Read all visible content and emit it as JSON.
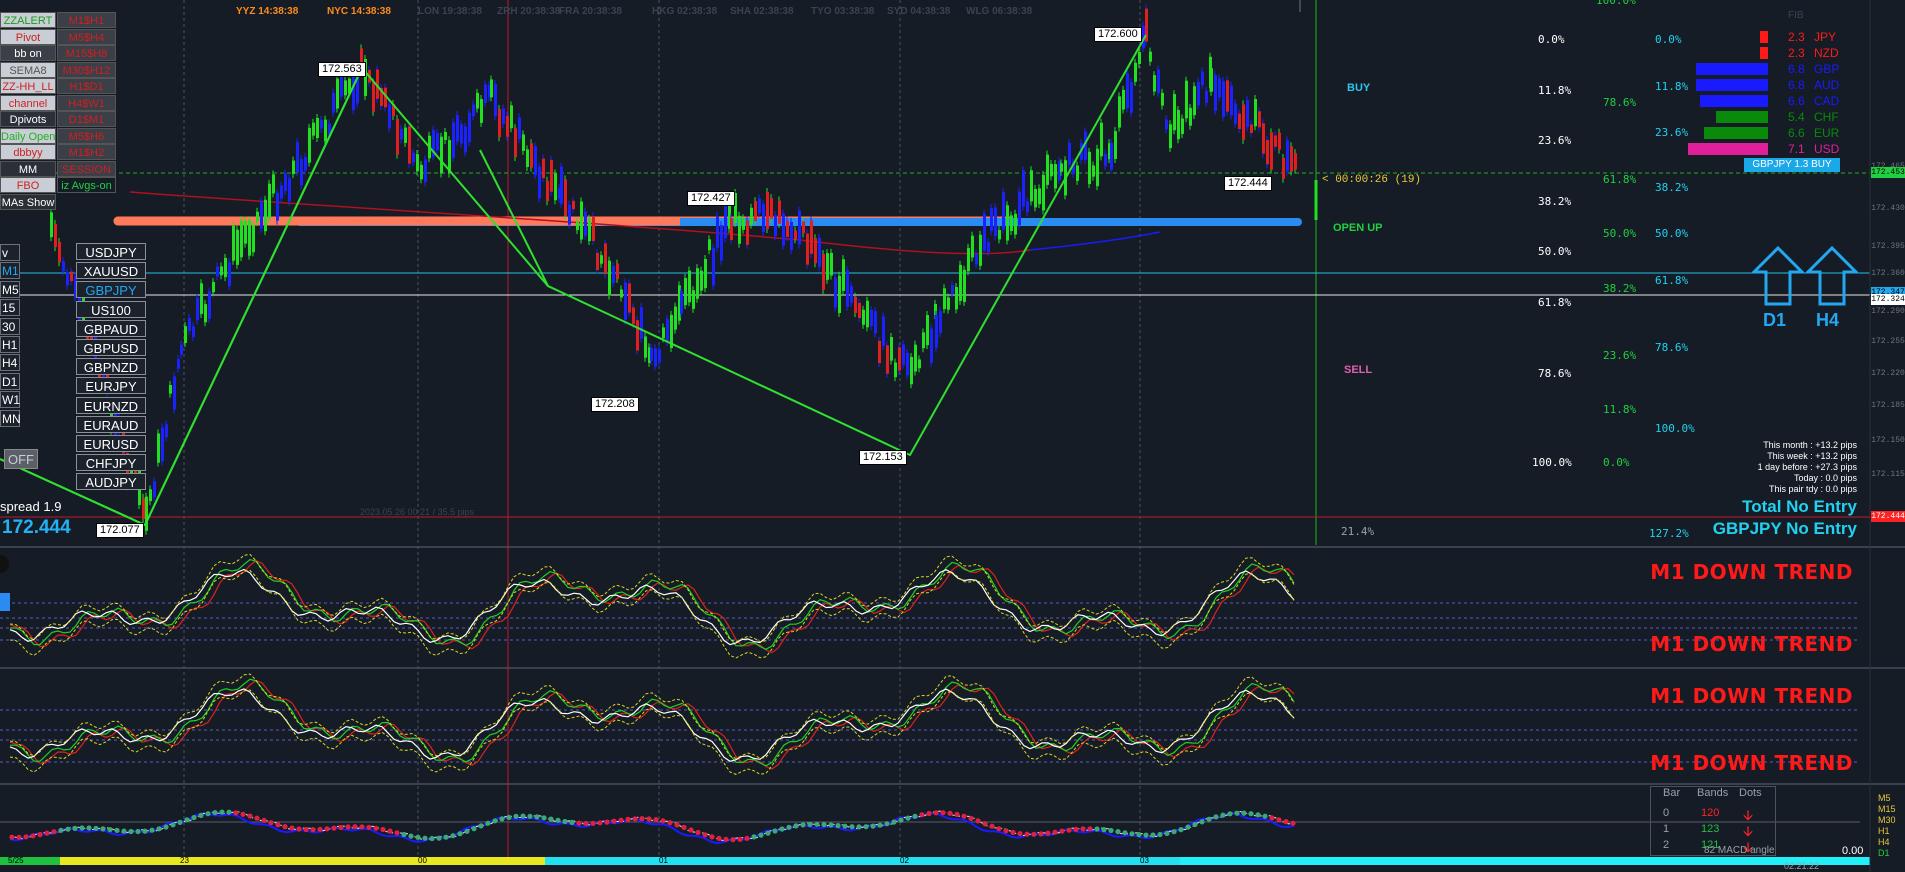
{
  "header": {
    "clocks": [
      {
        "label": "YYZ 14:38:38",
        "color": "#ff8c1a"
      },
      {
        "label": "NYC 14:38:38",
        "color": "#ff8c1a"
      },
      {
        "label": "LON 19:38:38",
        "color": "#3b4352"
      },
      {
        "label": "ZRH 20:38:38",
        "color": "#3b4352"
      },
      {
        "label": "FRA 20:38:38",
        "color": "#3b4352"
      },
      {
        "label": "HKG 02:38:38",
        "color": "#3b4352"
      },
      {
        "label": "SHA 02:38:38",
        "color": "#3b4352"
      },
      {
        "label": "TYO 03:38:38",
        "color": "#3b4352"
      },
      {
        "label": "SYD 04:38:38",
        "color": "#3b4352"
      },
      {
        "label": "WLG 06:38:38",
        "color": "#3b4352"
      }
    ],
    "top_right_label": "FIB"
  },
  "left_panel": {
    "buttons_left": [
      {
        "label": "ZZALERT",
        "bg": "#c9ced6",
        "color": "#18a018"
      },
      {
        "label": "Pivot",
        "bg": "#c9ced6",
        "color": "#d02020"
      },
      {
        "label": "bb on",
        "bg": "#3a3f48",
        "color": "#ffffff"
      },
      {
        "label": "SEMA8",
        "bg": "#c9ced6",
        "color": "#555555"
      },
      {
        "label": "ZZ-HH_LL",
        "bg": "#c9ced6",
        "color": "#d02020"
      },
      {
        "label": "channel",
        "bg": "#c9ced6",
        "color": "#d02020"
      },
      {
        "label": "Dpivots",
        "bg": "#2a2f38",
        "color": "#ffffff"
      },
      {
        "label": "Daily Open",
        "bg": "#c9ced6",
        "color": "#20b020"
      },
      {
        "label": "dbbyy",
        "bg": "#c9ced6",
        "color": "#d02020"
      },
      {
        "label": "MM",
        "bg": "#2a2f38",
        "color": "#ffffff"
      },
      {
        "label": "FBO",
        "bg": "#c9ced6",
        "color": "#d02020"
      },
      {
        "label": "MAs Show",
        "bg": "#2a2f38",
        "color": "#ffffff"
      }
    ],
    "buttons_right": [
      "M1$H1",
      "M5$H4",
      "M15$H8",
      "M30$H12",
      "H1$D1",
      "H4$W1",
      "D1$M1",
      "M5$H6",
      "M1$H2",
      "SESSION",
      "iz Avgs-on"
    ],
    "symbols": [
      "USDJPY",
      "XAUUSD",
      "GBPJPY",
      "US100",
      "GBPAUD",
      "GBPUSD",
      "GBPNZD",
      "EURJPY",
      "EURNZD",
      "EURAUD",
      "EURUSD",
      "CHFJPY",
      "AUDJPY"
    ],
    "active_symbol": "GBPJPY",
    "timeframes": [
      "v",
      "M1",
      "M5",
      "15",
      "30",
      "H1",
      "H4",
      "D1",
      "W1",
      "MN"
    ],
    "off_label": "OFF",
    "spread_label": "spread 1.9",
    "price_label": "172.444"
  },
  "chart": {
    "price_labels": [
      "172.563",
      "172.427",
      "172.208",
      "172.153",
      "172.600",
      "172.444",
      "172.077"
    ],
    "sub_watermark": "2023.05.26 00:21 / 35.5 pips",
    "signals": {
      "buy": "BUY",
      "open_up": "OPEN UP",
      "sell": "SELL"
    },
    "countdown": "< 00:00:26 (19)",
    "fib_left": [
      "0.0%",
      "11.8%",
      "23.6%",
      "38.2%",
      "50.0%",
      "61.8%",
      "78.6%",
      "100.0%"
    ],
    "fib_mid": [
      "78.6%",
      "61.8%",
      "50.0%",
      "38.2%",
      "23.6%",
      "11.8%",
      "0.0%"
    ],
    "fib_right": [
      "0.0%",
      "11.8%",
      "23.6%",
      "38.2%",
      "50.0%",
      "61.8%",
      "78.6%",
      "100.0%"
    ],
    "fib_bottom_left": "21.4%",
    "fib_bottom_right": "127.2%",
    "fib_top": "100.0%",
    "currency_strength": [
      {
        "value": "2.3",
        "name": "JPY",
        "color": "#ff1a1a"
      },
      {
        "value": "2.3",
        "name": "NZD",
        "color": "#ff1a1a"
      },
      {
        "value": "6.8",
        "name": "GBP",
        "color": "#1a1aff"
      },
      {
        "value": "6.8",
        "name": "AUD",
        "color": "#1a1aff"
      },
      {
        "value": "6.6",
        "name": "CAD",
        "color": "#1a1aff"
      },
      {
        "value": "5.4",
        "name": "CHF",
        "color": "#0a8a0a"
      },
      {
        "value": "6.6",
        "name": "EUR",
        "color": "#0a8a0a"
      },
      {
        "value": "7.1",
        "name": "USD",
        "color": "#e0209a"
      }
    ],
    "strength_fractions": [
      0.1,
      0.1,
      0.9,
      0.9,
      0.85,
      0.65,
      0.8,
      1.0
    ],
    "pair_badge": "GBPJPY 1.3 BUY",
    "arrows": [
      "D1",
      "H4"
    ],
    "stats": [
      "This month : +13.2 pips",
      "This week : +13.2 pips",
      "1 day before : +27.3 pips",
      "Today : 0.0 pips",
      "This pair tdy : 0.0 pips"
    ],
    "total_no_entry": "Total No Entry",
    "pair_no_entry": "GBPJPY No Entry",
    "price_axis": [
      "172.465",
      "172.453",
      "172.430",
      "172.395",
      "172.360",
      "172.347",
      "172.324",
      "172.290",
      "172.255",
      "172.220",
      "172.185",
      "172.150",
      "172.115",
      "172.080"
    ]
  },
  "subpanels": {
    "trend_labels": [
      "M1 DOWN TREND",
      "M1 DOWN TREND",
      "M1 DOWN TREND",
      "M1 DOWN TREND"
    ]
  },
  "bottom_table": {
    "headers": [
      "Bar",
      "Bands",
      "Dots"
    ],
    "rows": [
      {
        "bar": "0",
        "bands": "120",
        "tf": "M5"
      },
      {
        "bar": "1",
        "bands": "123",
        "tf": "M15"
      },
      {
        "bar": "2",
        "bands": "121",
        "tf": "M30"
      }
    ],
    "extra_tf": [
      "H1",
      "H4",
      "D1"
    ],
    "macd_label": "82 MACD angle",
    "value_label": "0.00",
    "time_axis": [
      "5/25",
      "23",
      "00",
      "01",
      "02",
      "03"
    ],
    "bottom_time": "02:21:22"
  }
}
